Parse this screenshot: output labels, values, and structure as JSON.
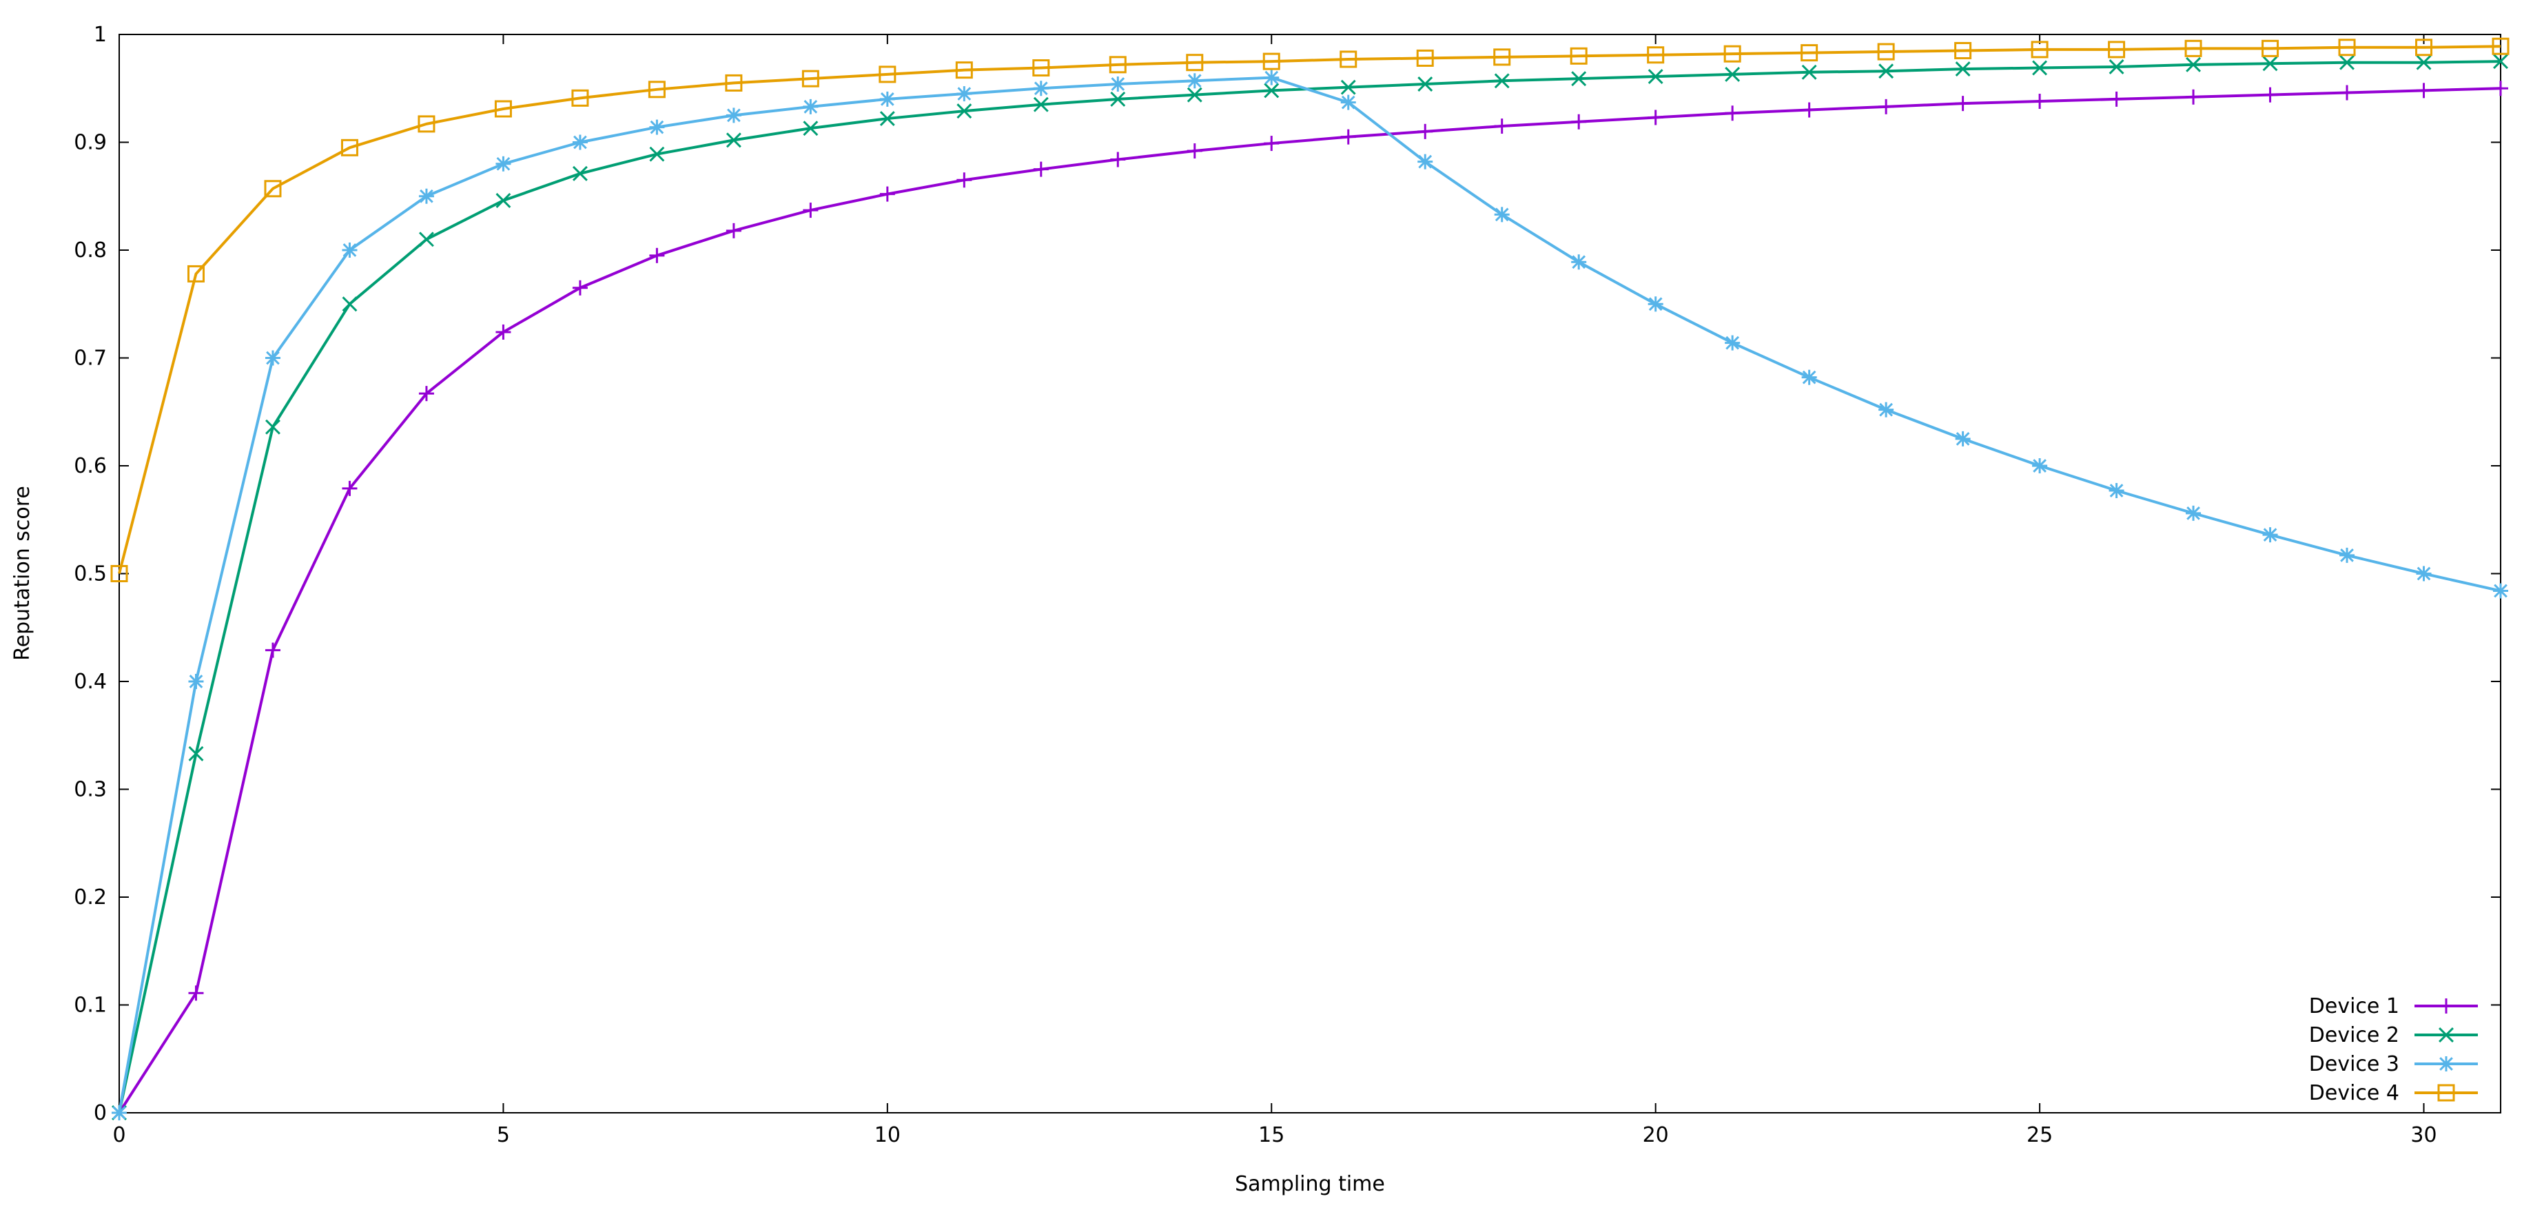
{
  "chart_data": {
    "type": "line",
    "title": "",
    "xlabel": "Sampling time",
    "ylabel": "Reputation score",
    "xlim": [
      0,
      31
    ],
    "ylim": [
      0,
      1
    ],
    "xticks": [
      0,
      5,
      10,
      15,
      20,
      25,
      30
    ],
    "xtick_labels": [
      "0",
      "5",
      "10",
      "15",
      "20",
      "25",
      "30"
    ],
    "yticks": [
      0,
      0.1,
      0.2,
      0.3,
      0.4,
      0.5,
      0.6,
      0.7,
      0.8,
      0.9,
      1
    ],
    "ytick_labels": [
      "0",
      "0.1",
      "0.2",
      "0.3",
      "0.4",
      "0.5",
      "0.6",
      "0.7",
      "0.8",
      "0.9",
      "1"
    ],
    "grid": false,
    "legend_position": "bottom-right",
    "x": [
      0,
      1,
      2,
      3,
      4,
      5,
      6,
      7,
      8,
      9,
      10,
      11,
      12,
      13,
      14,
      15,
      16,
      17,
      18,
      19,
      20,
      21,
      22,
      23,
      24,
      25,
      26,
      27,
      28,
      29,
      30,
      31
    ],
    "series": [
      {
        "name": "Device 1",
        "color": "#9400d3",
        "marker": "plus",
        "values": [
          0,
          0.111,
          0.429,
          0.579,
          0.667,
          0.724,
          0.765,
          0.795,
          0.818,
          0.837,
          0.852,
          0.865,
          0.875,
          0.884,
          0.892,
          0.899,
          0.905,
          0.91,
          0.915,
          0.919,
          0.923,
          0.927,
          0.93,
          0.933,
          0.936,
          0.938,
          0.94,
          0.942,
          0.944,
          0.946,
          0.948,
          0.95
        ]
      },
      {
        "name": "Device 2",
        "color": "#009e73",
        "marker": "cross",
        "values": [
          0,
          0.333,
          0.636,
          0.75,
          0.81,
          0.846,
          0.871,
          0.889,
          0.902,
          0.913,
          0.922,
          0.929,
          0.935,
          0.94,
          0.944,
          0.948,
          0.951,
          0.954,
          0.957,
          0.959,
          0.961,
          0.963,
          0.965,
          0.966,
          0.968,
          0.969,
          0.97,
          0.972,
          0.973,
          0.974,
          0.974,
          0.975
        ]
      },
      {
        "name": "Device 3",
        "color": "#56b4e9",
        "marker": "star",
        "values": [
          0,
          0.4,
          0.7,
          0.8,
          0.85,
          0.88,
          0.9,
          0.914,
          0.925,
          0.933,
          0.94,
          0.945,
          0.95,
          0.954,
          0.957,
          0.96,
          0.937,
          0.882,
          0.833,
          0.789,
          0.75,
          0.714,
          0.682,
          0.652,
          0.625,
          0.6,
          0.577,
          0.556,
          0.536,
          0.517,
          0.5,
          0.484
        ]
      },
      {
        "name": "Device 4",
        "color": "#e69f00",
        "marker": "square",
        "values": [
          0.5,
          0.778,
          0.857,
          0.895,
          0.917,
          0.931,
          0.941,
          0.949,
          0.955,
          0.959,
          0.963,
          0.967,
          0.969,
          0.972,
          0.974,
          0.975,
          0.977,
          0.978,
          0.979,
          0.98,
          0.981,
          0.982,
          0.983,
          0.984,
          0.985,
          0.986,
          0.986,
          0.987,
          0.987,
          0.988,
          0.988,
          0.989
        ]
      }
    ]
  }
}
